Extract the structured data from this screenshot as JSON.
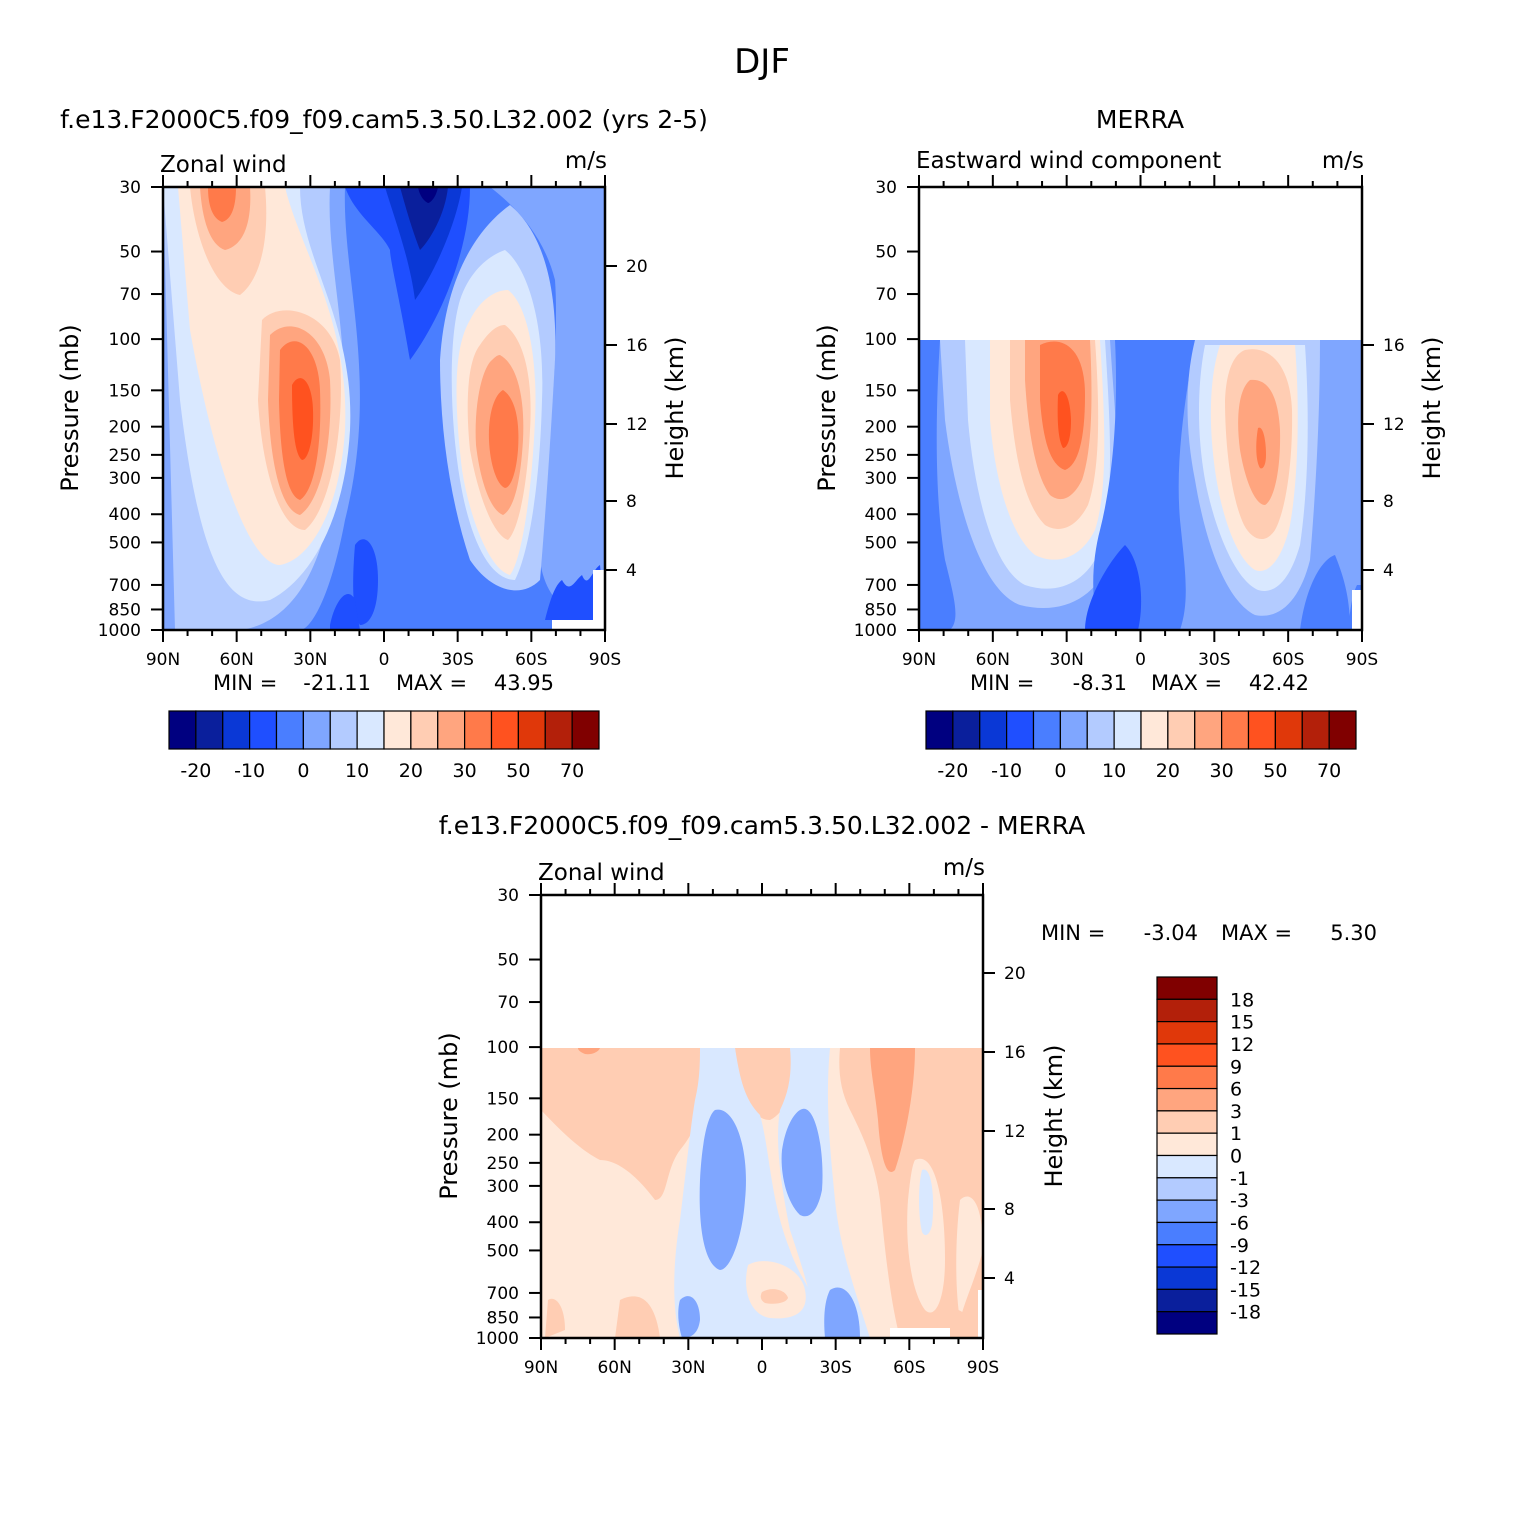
{
  "figure": {
    "title": "DJF"
  },
  "ticks": {
    "pressure": [
      "30",
      "50",
      "70",
      "100",
      "150",
      "200",
      "250",
      "300",
      "400",
      "500",
      "700",
      "850",
      "1000"
    ],
    "latitude": [
      "90N",
      "60N",
      "30N",
      "0",
      "30S",
      "60S",
      "90S"
    ]
  },
  "colors": {
    "full": [
      "#000080",
      "#0a1f9c",
      "#0a38d6",
      "#1f4fff",
      "#4a7eff",
      "#7fa6ff",
      "#b3cbff",
      "#d9e8ff",
      "#ffe8d9",
      "#ffcdb3",
      "#ffa57f",
      "#ff7a4a",
      "#ff521f",
      "#e0380a",
      "#b3200a",
      "#800000"
    ],
    "diff": [
      "#000080",
      "#0a1f9c",
      "#0a38d6",
      "#1f4fff",
      "#4a7eff",
      "#7fa6ff",
      "#b3cbff",
      "#d9e8ff",
      "#ffe8d9",
      "#ffcdb3",
      "#ffa57f",
      "#ff7a4a",
      "#ff521f",
      "#e0380a",
      "#b3200a",
      "#800000"
    ]
  },
  "panels": [
    {
      "title": "f.e13.F2000C5.f09_f09.cam5.3.50.L32.002 (yrs 2-5)",
      "left_label": "Zonal wind",
      "units": "m/s",
      "ylabel": "Pressure (mb)",
      "ylabel2": "Height (km)",
      "height_ticks": [
        "20",
        "16",
        "12",
        "8",
        "4"
      ],
      "min_max": {
        "min_label": "MIN =",
        "min": "-21.11",
        "max_label": "MAX =",
        "max": "43.95"
      },
      "colorbar_labels": [
        "-20",
        "-10",
        "0",
        "10",
        "20",
        "30",
        "50",
        "70"
      ]
    },
    {
      "title": "MERRA",
      "left_label": "Eastward wind component",
      "units": "m/s",
      "ylabel": "Pressure (mb)",
      "ylabel2": "Height (km)",
      "height_ticks": [
        "16",
        "12",
        "8",
        "4"
      ],
      "min_max": {
        "min_label": "MIN =",
        "min": "-8.31",
        "max_label": "MAX =",
        "max": "42.42"
      },
      "colorbar_labels": [
        "-20",
        "-10",
        "0",
        "10",
        "20",
        "30",
        "50",
        "70"
      ]
    },
    {
      "title": "f.e13.F2000C5.f09_f09.cam5.3.50.L32.002 - MERRA",
      "left_label": "Zonal wind",
      "units": "m/s",
      "ylabel": "Pressure (mb)",
      "ylabel2": "Height (km)",
      "height_ticks": [
        "20",
        "16",
        "12",
        "8",
        "4"
      ],
      "min_max": {
        "min_label": "MIN =",
        "min": "-3.04",
        "max_label": "MAX =",
        "max": "5.30"
      },
      "colorbar_labels": [
        "18",
        "15",
        "12",
        "9",
        "6",
        "3",
        "1",
        "0",
        "-1",
        "-3",
        "-6",
        "-9",
        "-12",
        "-15",
        "-18"
      ]
    }
  ],
  "chart_data": [
    {
      "type": "heatmap",
      "title": "f.e13.F2000C5.f09_f09.cam5.3.50.L32.002 (yrs 2-5)",
      "variable": "Zonal wind",
      "units": "m/s",
      "xlabel": "",
      "ylabel": "Pressure (mb)",
      "ylabel_right": "Height (km)",
      "x_ticks": [
        "90N",
        "60N",
        "30N",
        "0",
        "30S",
        "60S",
        "90S"
      ],
      "y_ticks": [
        30,
        50,
        70,
        100,
        150,
        200,
        250,
        300,
        400,
        500,
        700,
        850,
        1000
      ],
      "y_scale": "log",
      "ylim": [
        1000,
        30
      ],
      "levels": [
        -25,
        -20,
        -15,
        -10,
        -5,
        0,
        5,
        10,
        15,
        20,
        25,
        30,
        40,
        50,
        60,
        70,
        80
      ],
      "min": -21.11,
      "max": 43.95,
      "features": [
        {
          "lat": 30,
          "p": 200,
          "value": 43,
          "kind": "max"
        },
        {
          "lat": -45,
          "p": 200,
          "value": 38,
          "kind": "max"
        },
        {
          "lat": -15,
          "p": 30,
          "value": -21,
          "kind": "min"
        },
        {
          "lat": 70,
          "p": 30,
          "value": 28,
          "kind": "max"
        }
      ]
    },
    {
      "type": "heatmap",
      "title": "MERRA",
      "variable": "Eastward wind component",
      "units": "m/s",
      "xlabel": "",
      "ylabel": "Pressure (mb)",
      "ylabel_right": "Height (km)",
      "x_ticks": [
        "90N",
        "60N",
        "30N",
        "0",
        "30S",
        "60S",
        "90S"
      ],
      "y_ticks": [
        30,
        50,
        70,
        100,
        150,
        200,
        250,
        300,
        400,
        500,
        700,
        850,
        1000
      ],
      "y_scale": "log",
      "ylim": [
        1000,
        30
      ],
      "data_top_p": 100,
      "levels": [
        -25,
        -20,
        -15,
        -10,
        -5,
        0,
        5,
        10,
        15,
        20,
        25,
        30,
        40,
        50,
        60,
        70,
        80
      ],
      "min": -8.31,
      "max": 42.42,
      "features": [
        {
          "lat": 30,
          "p": 200,
          "value": 42,
          "kind": "max"
        },
        {
          "lat": -48,
          "p": 250,
          "value": 36,
          "kind": "max"
        }
      ]
    },
    {
      "type": "heatmap",
      "title": "f.e13.F2000C5.f09_f09.cam5.3.50.L32.002 - MERRA",
      "variable": "Zonal wind",
      "units": "m/s",
      "xlabel": "",
      "ylabel": "Pressure (mb)",
      "ylabel_right": "Height (km)",
      "x_ticks": [
        "90N",
        "60N",
        "30N",
        "0",
        "30S",
        "60S",
        "90S"
      ],
      "y_ticks": [
        30,
        50,
        70,
        100,
        150,
        200,
        250,
        300,
        400,
        500,
        700,
        850,
        1000
      ],
      "y_scale": "log",
      "ylim": [
        1000,
        30
      ],
      "data_top_p": 100,
      "levels": [
        -18,
        -15,
        -12,
        -9,
        -6,
        -3,
        -1,
        0,
        1,
        3,
        6,
        9,
        12,
        15,
        18
      ],
      "min": -3.04,
      "max": 5.3
    }
  ]
}
